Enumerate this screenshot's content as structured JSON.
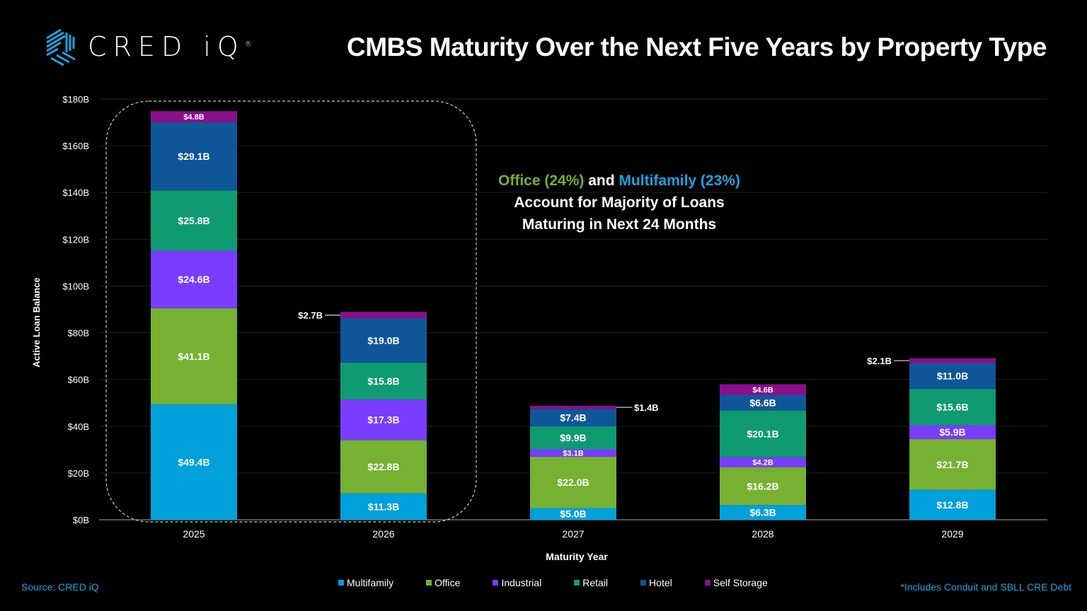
{
  "logo": {
    "text": "CRED iQ",
    "trademark": "®"
  },
  "title": "CMBS Maturity Over the Next Five Years by Property Type",
  "annotation": {
    "office": "Office (24%)",
    "and": " and ",
    "multifamily": "Multifamily (23%)",
    "line2": "Account for Majority of Loans",
    "line3": "Maturing in Next 24 Months"
  },
  "source": "Source: CRED iQ",
  "footnote": "*Includes Conduit and SBLL CRE Debt",
  "chart_data": {
    "type": "bar",
    "stacked": true,
    "categories": [
      "2025",
      "2026",
      "2027",
      "2028",
      "2029"
    ],
    "xlabel": "Maturity Year",
    "ylabel": "Active Loan Balance",
    "ylim": [
      0,
      180
    ],
    "yticks": [
      "$0B",
      "$20B",
      "$40B",
      "$60B",
      "$80B",
      "$100B",
      "$120B",
      "$140B",
      "$160B",
      "$180B"
    ],
    "grid": true,
    "legend": "bottom",
    "series": [
      {
        "name": "Multifamily",
        "color": "#00a0dc",
        "values": [
          49.4,
          11.3,
          5.0,
          6.3,
          12.8
        ],
        "labels": [
          "$49.4B",
          "$11.3B",
          "$5.0B",
          "$6.3B",
          "$12.8B"
        ]
      },
      {
        "name": "Office",
        "color": "#76b132",
        "values": [
          41.1,
          22.8,
          22.0,
          16.2,
          21.7
        ],
        "labels": [
          "$41.1B",
          "$22.8B",
          "$22.0B",
          "$16.2B",
          "$21.7B"
        ]
      },
      {
        "name": "Industrial",
        "color": "#7a3cff",
        "values": [
          24.6,
          17.3,
          3.1,
          4.2,
          5.9
        ],
        "labels": [
          "$24.6B",
          "$17.3B",
          "$3.1B",
          "$4.2B",
          "$5.9B"
        ]
      },
      {
        "name": "Retail",
        "color": "#0f9a72",
        "values": [
          25.8,
          15.8,
          9.9,
          20.1,
          15.6
        ],
        "labels": [
          "$25.8B",
          "$15.8B",
          "$9.9B",
          "$20.1B",
          "$15.6B"
        ]
      },
      {
        "name": "Hotel",
        "color": "#0f5699",
        "values": [
          29.1,
          19.0,
          7.4,
          6.6,
          11.0
        ],
        "labels": [
          "$29.1B",
          "$19.0B",
          "$7.4B",
          "$6.6B",
          "$11.0B"
        ]
      },
      {
        "name": "Self Storage",
        "color": "#8a0f8a",
        "values": [
          4.8,
          2.7,
          1.4,
          4.6,
          2.1
        ],
        "labels": [
          "$4.8B",
          "$2.7B",
          "$1.4B",
          "$4.6B",
          "$2.1B"
        ]
      }
    ],
    "highlight": {
      "categories": [
        "2025",
        "2026"
      ],
      "style": "dashed-rounded-box"
    }
  }
}
